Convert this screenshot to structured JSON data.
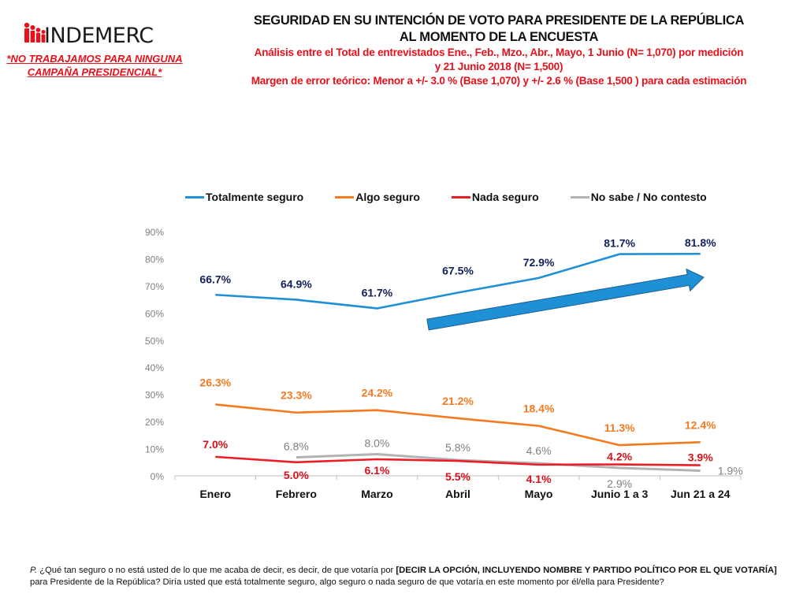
{
  "brand": {
    "logo_text": "INDEMERC",
    "disclaimer_line1": "*NO TRABAJAMOS PARA NINGUNA",
    "disclaimer_line2": "CAMPAÑA PRESIDENCIAL*",
    "accent_color": "#e8101a"
  },
  "header": {
    "title_line1": "SEGURIDAD EN SU INTENCIÓN DE VOTO PARA PRESIDENTE DE LA REPÚBLICA",
    "title_line2": "AL MOMENTO DE LA ENCUESTA",
    "subtitle_line1": "Análisis entre el Total de entrevistados Ene., Feb., Mzo., Abr., Mayo, 1 Junio (N= 1,070) por medición",
    "subtitle_line2": "y 21 Junio  2018 (N= 1,500)",
    "subtitle_line3": "Margen de error teórico: Menor a +/- 3.0 % (Base 1,070) y +/-  2.6 % (Base 1,500 ) para cada estimación"
  },
  "chart_data": {
    "type": "line",
    "title": "SEGURIDAD EN SU INTENCIÓN DE VOTO PARA PRESIDENTE DE LA REPÚBLICA AL MOMENTO DE LA ENCUESTA",
    "xlabel": "",
    "ylabel": "",
    "categories": [
      "Enero",
      "Febrero",
      "Marzo",
      "Abril",
      "Mayo",
      "Junio 1 a 3",
      "Jun 21 a 24"
    ],
    "ylim": [
      0,
      90
    ],
    "yticks": [
      0,
      10,
      20,
      30,
      40,
      50,
      60,
      70,
      80,
      90
    ],
    "ytick_labels": [
      "0%",
      "10%",
      "20%",
      "30%",
      "40%",
      "50%",
      "60%",
      "70%",
      "80%",
      "90%"
    ],
    "grid": false,
    "legend_position": "top",
    "series": [
      {
        "name": "Totalmente seguro",
        "color": "#1f8fd6",
        "label_color": "#12205a",
        "values": [
          66.7,
          64.9,
          61.7,
          67.5,
          72.9,
          81.7,
          81.8
        ],
        "labels": [
          "66.7%",
          "64.9%",
          "61.7%",
          "67.5%",
          "72.9%",
          "81.7%",
          "81.8%"
        ]
      },
      {
        "name": "Algo seguro",
        "color": "#f47a20",
        "label_color": "#f47a20",
        "values": [
          26.3,
          23.3,
          24.2,
          21.2,
          18.4,
          11.3,
          12.4
        ],
        "labels": [
          "26.3%",
          "23.3%",
          "24.2%",
          "21.2%",
          "18.4%",
          "11.3%",
          "12.4%"
        ]
      },
      {
        "name": "Nada seguro",
        "color": "#ee1c25",
        "label_color": "#d7101a",
        "values": [
          7.0,
          5.0,
          6.1,
          5.5,
          4.1,
          4.2,
          3.9
        ],
        "labels": [
          "7.0%",
          "5.0%",
          "6.1%",
          "5.5%",
          "4.1%",
          "4.2%",
          "3.9%"
        ]
      },
      {
        "name": "No sabe / No contesto",
        "color": "#b3b3b3",
        "label_color": "#7f7f7f",
        "values": [
          null,
          6.8,
          8.0,
          5.8,
          4.6,
          2.9,
          1.9
        ],
        "labels": [
          null,
          "6.8%",
          "8.0%",
          "5.8%",
          "4.6%",
          "2.9%",
          "1.9%"
        ]
      }
    ],
    "annotations": [
      {
        "type": "arrow",
        "description": "upward trend arrow from Abril to Jun 21 a 24",
        "color": "#1f8fd6"
      }
    ]
  },
  "footnote": {
    "prefix": "P.",
    "text_part1": " ¿Qué tan seguro o no está usted de lo que me acaba de decir, es decir, de que votaría por ",
    "bold_part": "[DECIR LA OPCIÓN, INCLUYENDO NOMBRE Y PARTIDO POLÍTICO POR EL QUE VOTARÍA]",
    "text_part2": "para Presidente de la República? Diría usted que está totalmente seguro, algo seguro o nada seguro de que votaría en este momento por él/ella para Presidente?"
  }
}
